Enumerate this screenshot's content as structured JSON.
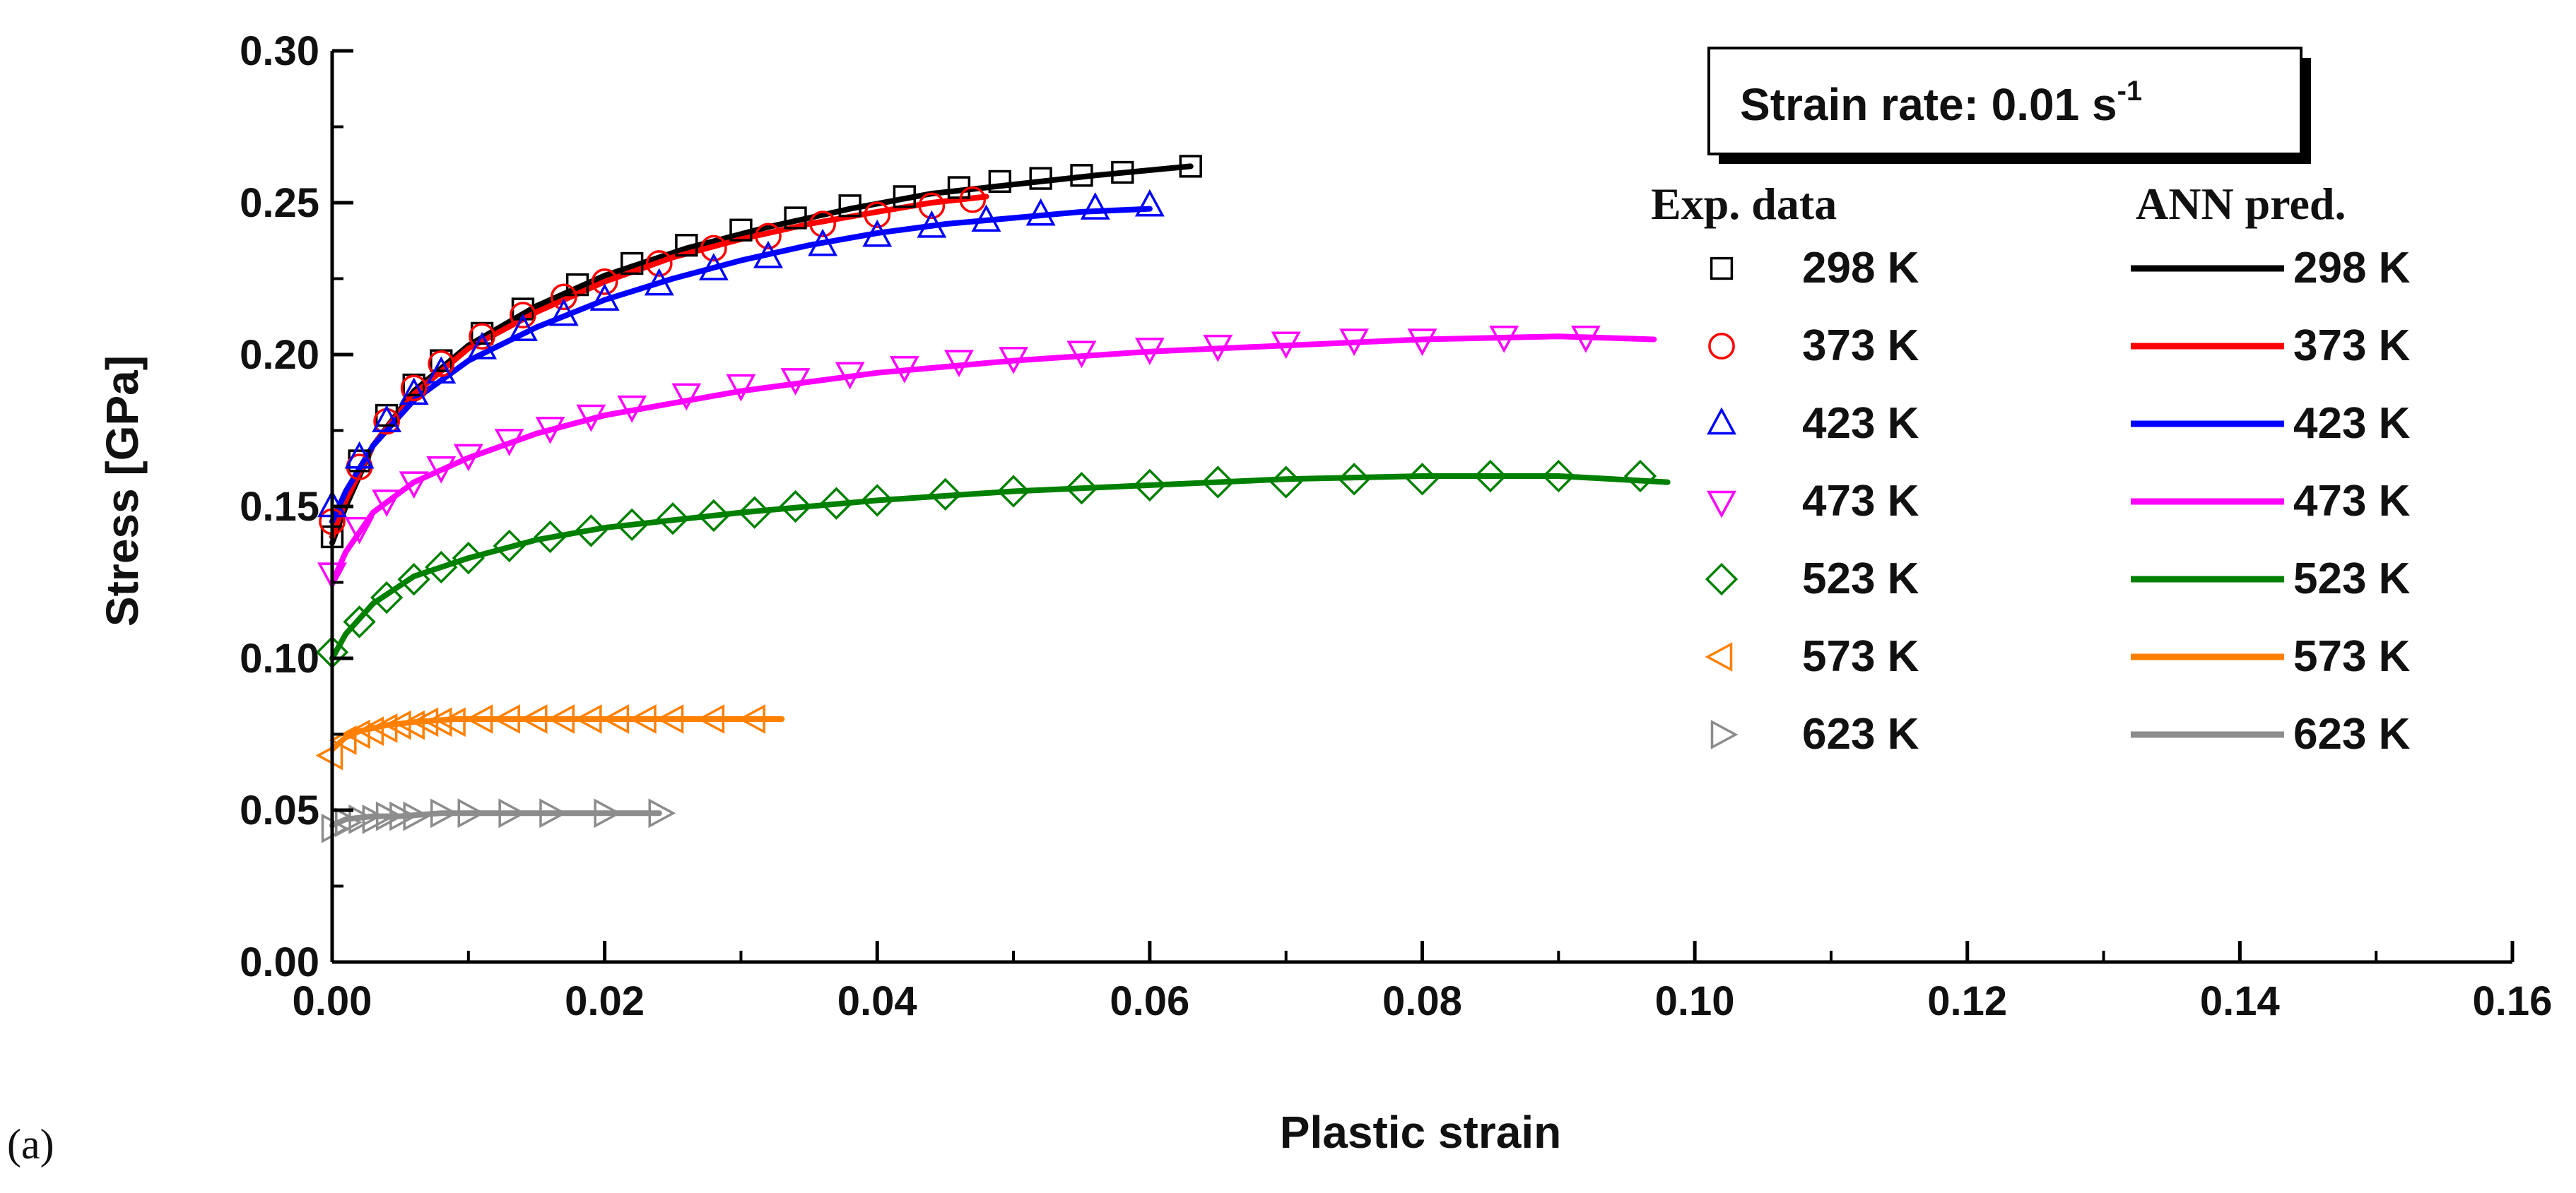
{
  "chart_data": {
    "type": "scatter",
    "title": "",
    "xlabel": "Plastic strain",
    "ylabel": "Stress [GPa]",
    "xlim": [
      0.0,
      0.16
    ],
    "ylim": [
      0.0,
      0.3
    ],
    "x_ticks": [
      "0.00",
      "0.02",
      "0.04",
      "0.06",
      "0.08",
      "0.10",
      "0.12",
      "0.14",
      "0.16"
    ],
    "y_ticks": [
      "0.00",
      "0.05",
      "0.10",
      "0.15",
      "0.20",
      "0.25",
      "0.30"
    ],
    "grid": false,
    "panel_label": "(a)",
    "annotation": {
      "text": "Strain rate: 0.01 s",
      "superscript": "-1",
      "position": "top-right"
    },
    "legend": {
      "placement": "right",
      "exp_header": "Exp. data",
      "ann_header": "ANN pred."
    },
    "series": [
      {
        "name": "298 K",
        "color": "#000000",
        "marker": "square",
        "exp_x": [
          0.0,
          0.002,
          0.004,
          0.006,
          0.008,
          0.011,
          0.014,
          0.018,
          0.022,
          0.026,
          0.03,
          0.034,
          0.038,
          0.042,
          0.046,
          0.049,
          0.052,
          0.055,
          0.058,
          0.063
        ],
        "exp_y": [
          0.14,
          0.165,
          0.18,
          0.19,
          0.198,
          0.207,
          0.215,
          0.223,
          0.23,
          0.236,
          0.241,
          0.245,
          0.249,
          0.252,
          0.255,
          0.257,
          0.258,
          0.259,
          0.26,
          0.262
        ],
        "fit_x": [
          0.0,
          0.001,
          0.003,
          0.006,
          0.01,
          0.015,
          0.02,
          0.026,
          0.032,
          0.038,
          0.044,
          0.05,
          0.056,
          0.063
        ],
        "fit_y": [
          0.138,
          0.15,
          0.17,
          0.188,
          0.203,
          0.216,
          0.226,
          0.235,
          0.242,
          0.248,
          0.253,
          0.256,
          0.259,
          0.262
        ]
      },
      {
        "name": "373 K",
        "color": "#ff0000",
        "marker": "circle",
        "exp_x": [
          0.0,
          0.002,
          0.004,
          0.006,
          0.008,
          0.011,
          0.014,
          0.017,
          0.02,
          0.024,
          0.028,
          0.032,
          0.036,
          0.04,
          0.044,
          0.047
        ],
        "exp_y": [
          0.145,
          0.163,
          0.178,
          0.189,
          0.197,
          0.206,
          0.213,
          0.219,
          0.224,
          0.23,
          0.235,
          0.239,
          0.243,
          0.246,
          0.249,
          0.251
        ],
        "fit_x": [
          0.0,
          0.001,
          0.003,
          0.006,
          0.01,
          0.015,
          0.02,
          0.025,
          0.03,
          0.035,
          0.04,
          0.044,
          0.048
        ],
        "fit_y": [
          0.14,
          0.152,
          0.17,
          0.187,
          0.202,
          0.214,
          0.224,
          0.232,
          0.238,
          0.243,
          0.247,
          0.25,
          0.252
        ]
      },
      {
        "name": "423 K",
        "color": "#0000ff",
        "marker": "triangle-up",
        "exp_x": [
          0.0,
          0.002,
          0.004,
          0.006,
          0.008,
          0.011,
          0.014,
          0.017,
          0.02,
          0.024,
          0.028,
          0.032,
          0.036,
          0.04,
          0.044,
          0.048,
          0.052,
          0.056,
          0.06
        ],
        "exp_y": [
          0.15,
          0.166,
          0.178,
          0.187,
          0.194,
          0.202,
          0.208,
          0.213,
          0.218,
          0.223,
          0.228,
          0.232,
          0.236,
          0.239,
          0.242,
          0.244,
          0.246,
          0.248,
          0.249
        ],
        "fit_x": [
          0.0,
          0.001,
          0.003,
          0.006,
          0.01,
          0.015,
          0.02,
          0.025,
          0.03,
          0.035,
          0.04,
          0.045,
          0.05,
          0.055,
          0.06
        ],
        "fit_y": [
          0.145,
          0.155,
          0.17,
          0.185,
          0.198,
          0.209,
          0.218,
          0.225,
          0.231,
          0.236,
          0.24,
          0.243,
          0.245,
          0.247,
          0.248
        ]
      },
      {
        "name": "473 K",
        "color": "#ff00ff",
        "marker": "triangle-down",
        "exp_x": [
          0.0,
          0.002,
          0.004,
          0.006,
          0.008,
          0.01,
          0.013,
          0.016,
          0.019,
          0.022,
          0.026,
          0.03,
          0.034,
          0.038,
          0.042,
          0.046,
          0.05,
          0.055,
          0.06,
          0.065,
          0.07,
          0.075,
          0.08,
          0.086,
          0.092
        ],
        "exp_y": [
          0.128,
          0.143,
          0.152,
          0.158,
          0.163,
          0.167,
          0.172,
          0.176,
          0.18,
          0.183,
          0.187,
          0.19,
          0.192,
          0.194,
          0.196,
          0.198,
          0.199,
          0.201,
          0.202,
          0.203,
          0.204,
          0.205,
          0.205,
          0.206,
          0.206
        ],
        "fit_x": [
          0.0,
          0.001,
          0.003,
          0.006,
          0.01,
          0.015,
          0.02,
          0.03,
          0.04,
          0.05,
          0.06,
          0.07,
          0.08,
          0.09,
          0.097
        ],
        "fit_y": [
          0.125,
          0.135,
          0.148,
          0.158,
          0.166,
          0.174,
          0.18,
          0.188,
          0.194,
          0.198,
          0.201,
          0.203,
          0.205,
          0.206,
          0.205
        ]
      },
      {
        "name": "523 K",
        "color": "#008000",
        "marker": "diamond",
        "exp_x": [
          0.0,
          0.002,
          0.004,
          0.006,
          0.008,
          0.01,
          0.013,
          0.016,
          0.019,
          0.022,
          0.025,
          0.028,
          0.031,
          0.034,
          0.037,
          0.04,
          0.045,
          0.05,
          0.055,
          0.06,
          0.065,
          0.07,
          0.075,
          0.08,
          0.085,
          0.09,
          0.096
        ],
        "exp_y": [
          0.102,
          0.112,
          0.12,
          0.126,
          0.13,
          0.133,
          0.137,
          0.14,
          0.142,
          0.144,
          0.146,
          0.147,
          0.148,
          0.15,
          0.151,
          0.152,
          0.154,
          0.155,
          0.156,
          0.157,
          0.158,
          0.158,
          0.159,
          0.159,
          0.16,
          0.16,
          0.16
        ],
        "fit_x": [
          0.0,
          0.001,
          0.003,
          0.006,
          0.01,
          0.015,
          0.02,
          0.03,
          0.04,
          0.05,
          0.06,
          0.07,
          0.08,
          0.09,
          0.098
        ],
        "fit_y": [
          0.1,
          0.108,
          0.118,
          0.127,
          0.133,
          0.139,
          0.143,
          0.148,
          0.152,
          0.155,
          0.157,
          0.159,
          0.16,
          0.16,
          0.158
        ]
      },
      {
        "name": "573 K",
        "color": "#ff8000",
        "marker": "triangle-left",
        "exp_x": [
          0.0,
          0.001,
          0.002,
          0.003,
          0.004,
          0.005,
          0.006,
          0.007,
          0.008,
          0.009,
          0.011,
          0.013,
          0.015,
          0.017,
          0.019,
          0.021,
          0.023,
          0.025,
          0.028,
          0.031
        ],
        "exp_y": [
          0.068,
          0.073,
          0.075,
          0.076,
          0.077,
          0.078,
          0.078,
          0.079,
          0.079,
          0.079,
          0.08,
          0.08,
          0.08,
          0.08,
          0.08,
          0.08,
          0.08,
          0.08,
          0.08,
          0.08
        ],
        "fit_x": [
          0.0,
          0.001,
          0.002,
          0.004,
          0.006,
          0.009,
          0.013,
          0.018,
          0.024,
          0.03,
          0.033
        ],
        "fit_y": [
          0.07,
          0.074,
          0.076,
          0.078,
          0.079,
          0.08,
          0.08,
          0.08,
          0.08,
          0.08,
          0.08
        ]
      },
      {
        "name": "623 K",
        "color": "#8c8c8c",
        "marker": "triangle-right",
        "exp_x": [
          0.0,
          0.001,
          0.002,
          0.003,
          0.004,
          0.005,
          0.006,
          0.008,
          0.01,
          0.013,
          0.016,
          0.02,
          0.024
        ],
        "exp_y": [
          0.044,
          0.046,
          0.047,
          0.047,
          0.048,
          0.048,
          0.048,
          0.049,
          0.049,
          0.049,
          0.049,
          0.049,
          0.049
        ],
        "fit_x": [
          0.0,
          0.001,
          0.003,
          0.005,
          0.008,
          0.012,
          0.016,
          0.02,
          0.024
        ],
        "fit_y": [
          0.045,
          0.047,
          0.048,
          0.048,
          0.049,
          0.049,
          0.049,
          0.049,
          0.049
        ]
      }
    ]
  }
}
